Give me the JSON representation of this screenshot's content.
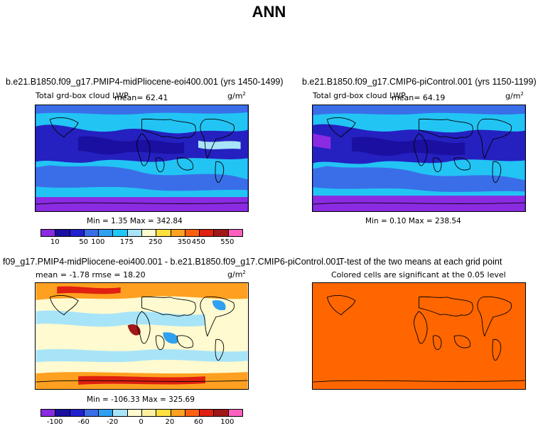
{
  "title": "ANN",
  "panels": {
    "p1": {
      "title": "b.e21.B1850.f09_g17.PMIP4-midPliocene-eoi400.001 (yrs 1450-1499)",
      "subtitle": "Total grd-box cloud LWP",
      "mean": "mean=   62.41",
      "units": "g/m",
      "units_sup": "2",
      "stats": "Min =    1.35 Max = 342.84"
    },
    "p2": {
      "title": "b.e21.B1850.f09_g17.CMIP6-piControl.001 (yrs 1150-1199)",
      "subtitle": "Total grd-box cloud LWP",
      "mean": "mean=   64.19",
      "units": "g/m",
      "units_sup": "2",
      "stats": "Min =    0.10 Max = 238.54"
    },
    "p3": {
      "title": "f09_g17.PMIP4-midPliocene-eoi400.001 - b.e21.B1850.f09_g17.CMIP6-piControl.001",
      "subtitle": "mean =   -1.78     rmse =   18.20",
      "units": "g/m",
      "units_sup": "2",
      "stats": "Min = -106.33 Max = 325.69"
    },
    "p4": {
      "title": "T-test of the two means at each grid point",
      "subtitle": "Colored cells are significant at the 0.05 level"
    }
  },
  "colorbars": {
    "top": {
      "colors": [
        "#8a2be2",
        "#1a0fa0",
        "#2020d0",
        "#3a6ee8",
        "#30a0f0",
        "#20c8f8",
        "#a8e4f8",
        "#fffad0",
        "#ffe040",
        "#ffa020",
        "#ff6010",
        "#e02010",
        "#a01818",
        "#ff60c0"
      ],
      "labels": [
        "10",
        "50",
        "100",
        "175",
        "250",
        "350",
        "450",
        "550"
      ]
    },
    "bottom": {
      "colors": [
        "#8a2be2",
        "#1a0fa0",
        "#2020d0",
        "#3a6ee8",
        "#30a0f0",
        "#a8e4f8",
        "#fffad0",
        "#fff0a0",
        "#ffe040",
        "#ffa020",
        "#ff6010",
        "#e02010",
        "#a01818",
        "#ff60c0"
      ],
      "labels": [
        "-100",
        "-60",
        "-20",
        "0",
        "20",
        "60",
        "100"
      ]
    }
  },
  "chart_data": [
    {
      "type": "heatmap",
      "title": "b.e21.B1850.f09_g17.PMIP4-midPliocene-eoi400.001 (yrs 1450-1499)",
      "variable": "Total grd-box cloud LWP",
      "units": "g/m2",
      "mean": 62.41,
      "min": 1.35,
      "max": 342.84,
      "levels": [
        10,
        50,
        100,
        175,
        250,
        350,
        450,
        550
      ]
    },
    {
      "type": "heatmap",
      "title": "b.e21.B1850.f09_g17.CMIP6-piControl.001 (yrs 1150-1199)",
      "variable": "Total grd-box cloud LWP",
      "units": "g/m2",
      "mean": 64.19,
      "min": 0.1,
      "max": 238.54,
      "levels": [
        10,
        50,
        100,
        175,
        250,
        350,
        450,
        550
      ]
    },
    {
      "type": "heatmap",
      "title": "f09_g17.PMIP4-midPliocene-eoi400.001 - b.e21.B1850.f09_g17.CMIP6-piControl.001",
      "units": "g/m2",
      "mean": -1.78,
      "rmse": 18.2,
      "min": -106.33,
      "max": 325.69,
      "levels": [
        -100,
        -60,
        -20,
        0,
        20,
        60,
        100
      ]
    },
    {
      "type": "heatmap",
      "title": "T-test of the two means at each grid point",
      "note": "Colored cells are significant at the 0.05 level",
      "fill": "#ff6600"
    }
  ]
}
